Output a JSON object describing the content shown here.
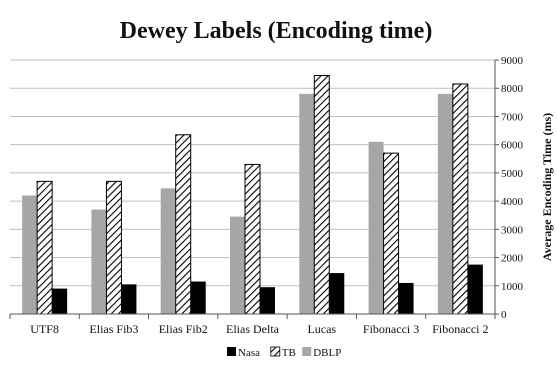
{
  "chart_data": {
    "type": "bar",
    "title": "Dewey Labels (Encoding time)",
    "xlabel": "",
    "ylabel": "Average Encoding Time (ms)",
    "ylim": [
      0,
      9000
    ],
    "yticks": [
      0,
      1000,
      2000,
      3000,
      4000,
      5000,
      6000,
      7000,
      8000,
      9000
    ],
    "y_axis_position": "right",
    "grid": true,
    "legend_position": "bottom",
    "categories": [
      "UTF8",
      "Elias Fib3",
      "Elias Fib2",
      "Elias Delta",
      "Lucas",
      "Fibonacci 3",
      "Fibonacci 2"
    ],
    "series": [
      {
        "name": "Nasa",
        "values": [
          900,
          1050,
          1150,
          950,
          1450,
          1100,
          1750
        ]
      },
      {
        "name": "TB",
        "values": [
          4700,
          4700,
          6350,
          5300,
          8450,
          5700,
          8150
        ]
      },
      {
        "name": "DBLP",
        "values": [
          4200,
          3700,
          4450,
          3450,
          7800,
          6100,
          7800
        ]
      }
    ],
    "series_styles": {
      "Nasa": {
        "fill": "#000000",
        "pattern": "solid"
      },
      "TB": {
        "fill": "#ffffff",
        "pattern": "diagonal-hatch"
      },
      "DBLP": {
        "fill": "#a6a6a6",
        "pattern": "solid"
      }
    }
  }
}
